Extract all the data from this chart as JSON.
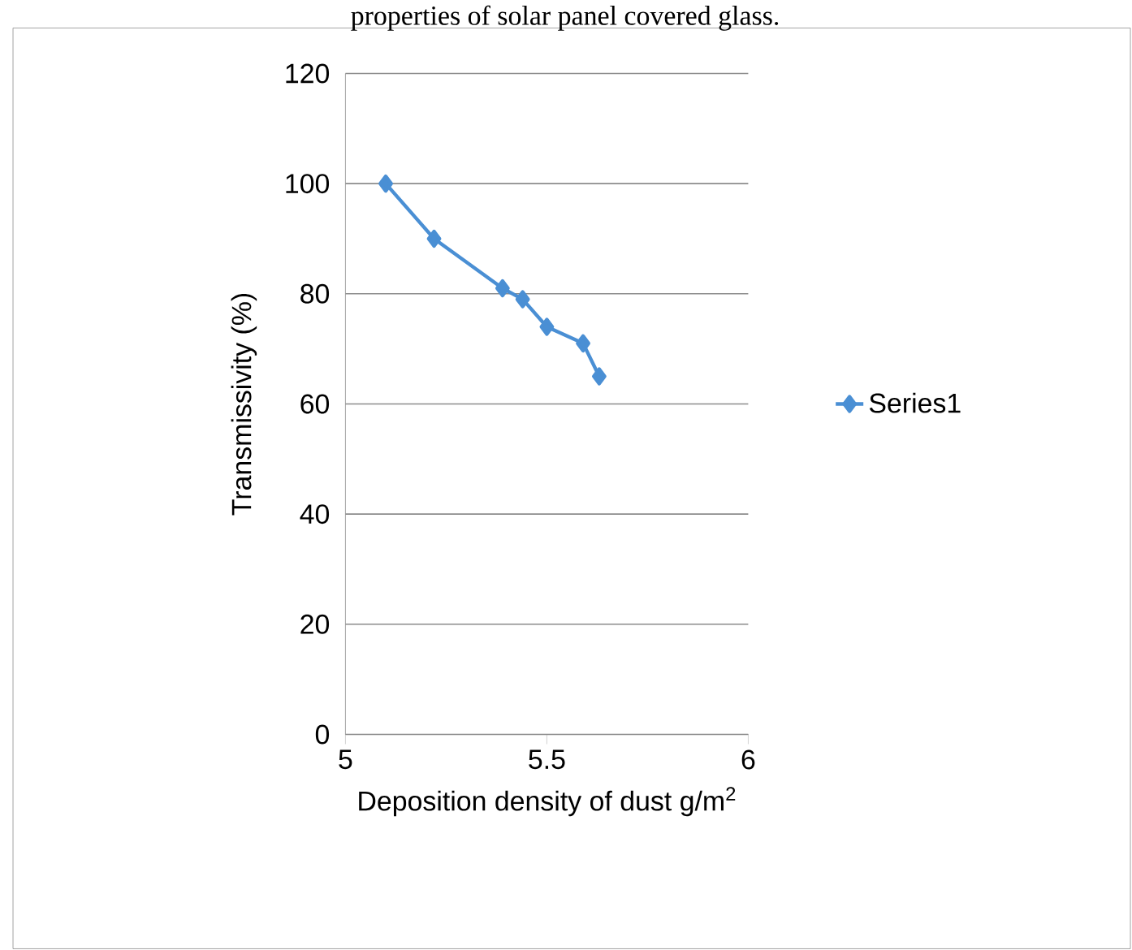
{
  "chart_data": {
    "type": "line",
    "title": "properties of solar panel covered glass.",
    "xlabel": "Deposition density of dust g/m$^{2}$",
    "ylabel": "Transmissivity (%)",
    "x": [
      5.1,
      5.22,
      5.39,
      5.44,
      5.5,
      5.59,
      5.63
    ],
    "series": [
      {
        "name": "Series1",
        "color": "#4a8fd4",
        "values": [
          100,
          90,
          81,
          79,
          74,
          71,
          65
        ]
      }
    ],
    "xlim": [
      5,
      6
    ],
    "ylim": [
      0,
      120
    ],
    "xticks": [
      5,
      5.5,
      6
    ],
    "yticks": [
      0,
      20,
      40,
      60,
      80,
      100,
      120
    ],
    "grid": "y",
    "legend": "right",
    "marker": "diamond",
    "line_style": "solid"
  }
}
